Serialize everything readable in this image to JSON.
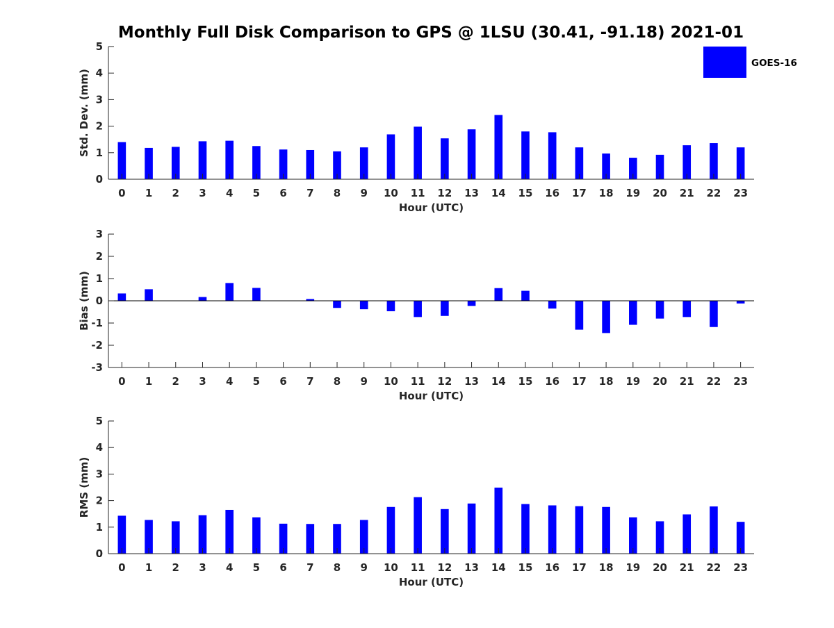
{
  "figure": {
    "title": "Monthly Full Disk Comparison to GPS @ 1LSU (30.41, -91.18) 2021-01",
    "legend": [
      {
        "label": "GOES-16",
        "color": "#0000ff"
      }
    ],
    "bar_color": "#0000ff",
    "axis_color": "#262626"
  },
  "chart_data": [
    {
      "type": "bar",
      "name": "std-dev",
      "title": "Monthly Full Disk Comparison to GPS @ 1LSU (30.41, -91.18) 2021-01",
      "xlabel": "Hour (UTC)",
      "ylabel": "Std. Dev. (mm)",
      "ylim": [
        0,
        5
      ],
      "yticks": [
        0,
        1,
        2,
        3,
        4,
        5
      ],
      "categories": [
        "0",
        "1",
        "2",
        "3",
        "4",
        "5",
        "6",
        "7",
        "8",
        "9",
        "10",
        "11",
        "12",
        "13",
        "14",
        "15",
        "16",
        "17",
        "18",
        "19",
        "20",
        "21",
        "22",
        "23"
      ],
      "series": [
        {
          "name": "GOES-16",
          "values": [
            1.4,
            1.18,
            1.22,
            1.43,
            1.45,
            1.25,
            1.12,
            1.1,
            1.05,
            1.2,
            1.69,
            1.98,
            1.54,
            1.88,
            2.42,
            1.8,
            1.77,
            1.2,
            0.97,
            0.81,
            0.92,
            1.28,
            1.36,
            1.2
          ]
        }
      ],
      "legend": "top-right",
      "grid": false
    },
    {
      "type": "bar",
      "name": "bias",
      "xlabel": "Hour (UTC)",
      "ylabel": "Bias (mm)",
      "ylim": [
        -3,
        3
      ],
      "yticks": [
        -3,
        -2,
        -1,
        0,
        1,
        2,
        3
      ],
      "categories": [
        "0",
        "1",
        "2",
        "3",
        "4",
        "5",
        "6",
        "7",
        "8",
        "9",
        "10",
        "11",
        "12",
        "13",
        "14",
        "15",
        "16",
        "17",
        "18",
        "19",
        "20",
        "21",
        "22",
        "23"
      ],
      "series": [
        {
          "name": "GOES-16",
          "values": [
            0.33,
            0.52,
            0.0,
            0.17,
            0.8,
            0.58,
            0.0,
            0.08,
            -0.32,
            -0.38,
            -0.47,
            -0.73,
            -0.68,
            -0.23,
            0.57,
            0.45,
            -0.35,
            -1.3,
            -1.45,
            -1.08,
            -0.8,
            -0.73,
            -1.18,
            -0.12
          ]
        }
      ],
      "grid": false
    },
    {
      "type": "bar",
      "name": "rms",
      "xlabel": "Hour (UTC)",
      "ylabel": "RMS (mm)",
      "ylim": [
        0,
        5
      ],
      "yticks": [
        0,
        1,
        2,
        3,
        4,
        5
      ],
      "categories": [
        "0",
        "1",
        "2",
        "3",
        "4",
        "5",
        "6",
        "7",
        "8",
        "9",
        "10",
        "11",
        "12",
        "13",
        "14",
        "15",
        "16",
        "17",
        "18",
        "19",
        "20",
        "21",
        "22",
        "23"
      ],
      "series": [
        {
          "name": "GOES-16",
          "values": [
            1.43,
            1.27,
            1.22,
            1.45,
            1.65,
            1.37,
            1.13,
            1.12,
            1.12,
            1.27,
            1.76,
            2.13,
            1.68,
            1.89,
            2.49,
            1.87,
            1.82,
            1.79,
            1.76,
            1.37,
            1.22,
            1.48,
            1.78,
            1.2
          ]
        }
      ],
      "grid": false
    }
  ]
}
